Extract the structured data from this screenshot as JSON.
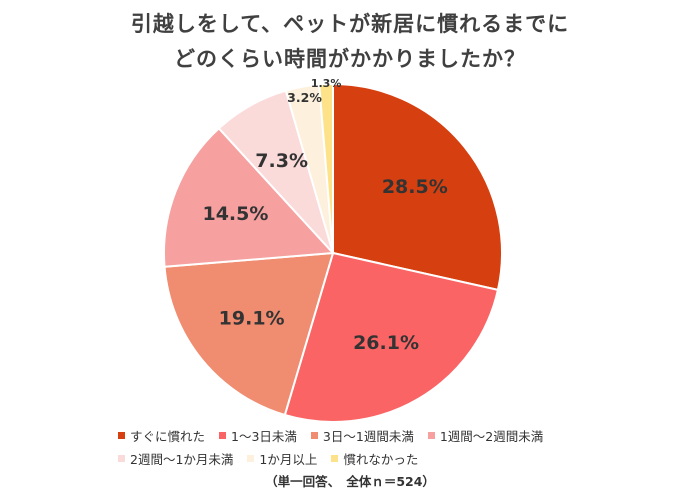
{
  "title_line1": "引越しをして、ペットが新居に慣れるまでに",
  "title_line2": "どのくらい時間がかかりましたか？",
  "note": "（単一回答、　全体ｎ＝524）",
  "chart_data": {
    "type": "pie",
    "title": "引越しをして、ペットが新居に慣れるまでに どのくらい時間がかかりましたか？",
    "start": "12 o'clock, clockwise",
    "legend_position": "bottom",
    "slices": [
      {
        "label": "すぐに慣れた",
        "value": 28.5,
        "value_label": "28.5%",
        "color": "#d64010"
      },
      {
        "label": "1～3日未満",
        "value": 26.1,
        "value_label": "26.1%",
        "color": "#fa6464"
      },
      {
        "label": "3日～1週間未満",
        "value": 19.1,
        "value_label": "19.1%",
        "color": "#f08c70"
      },
      {
        "label": "1週間～2週間未満",
        "value": 14.5,
        "value_label": "14.5%",
        "color": "#f6a0a0"
      },
      {
        "label": "2週間～1か月未満",
        "value": 7.3,
        "value_label": "7.3%",
        "color": "#fbdada"
      },
      {
        "label": "1か月以上",
        "value": 3.2,
        "value_label": "3.2%",
        "color": "#fdf0dc"
      },
      {
        "label": "慣れなかった",
        "value": 1.3,
        "value_label": "1.3%",
        "color": "#fde28a"
      }
    ]
  }
}
